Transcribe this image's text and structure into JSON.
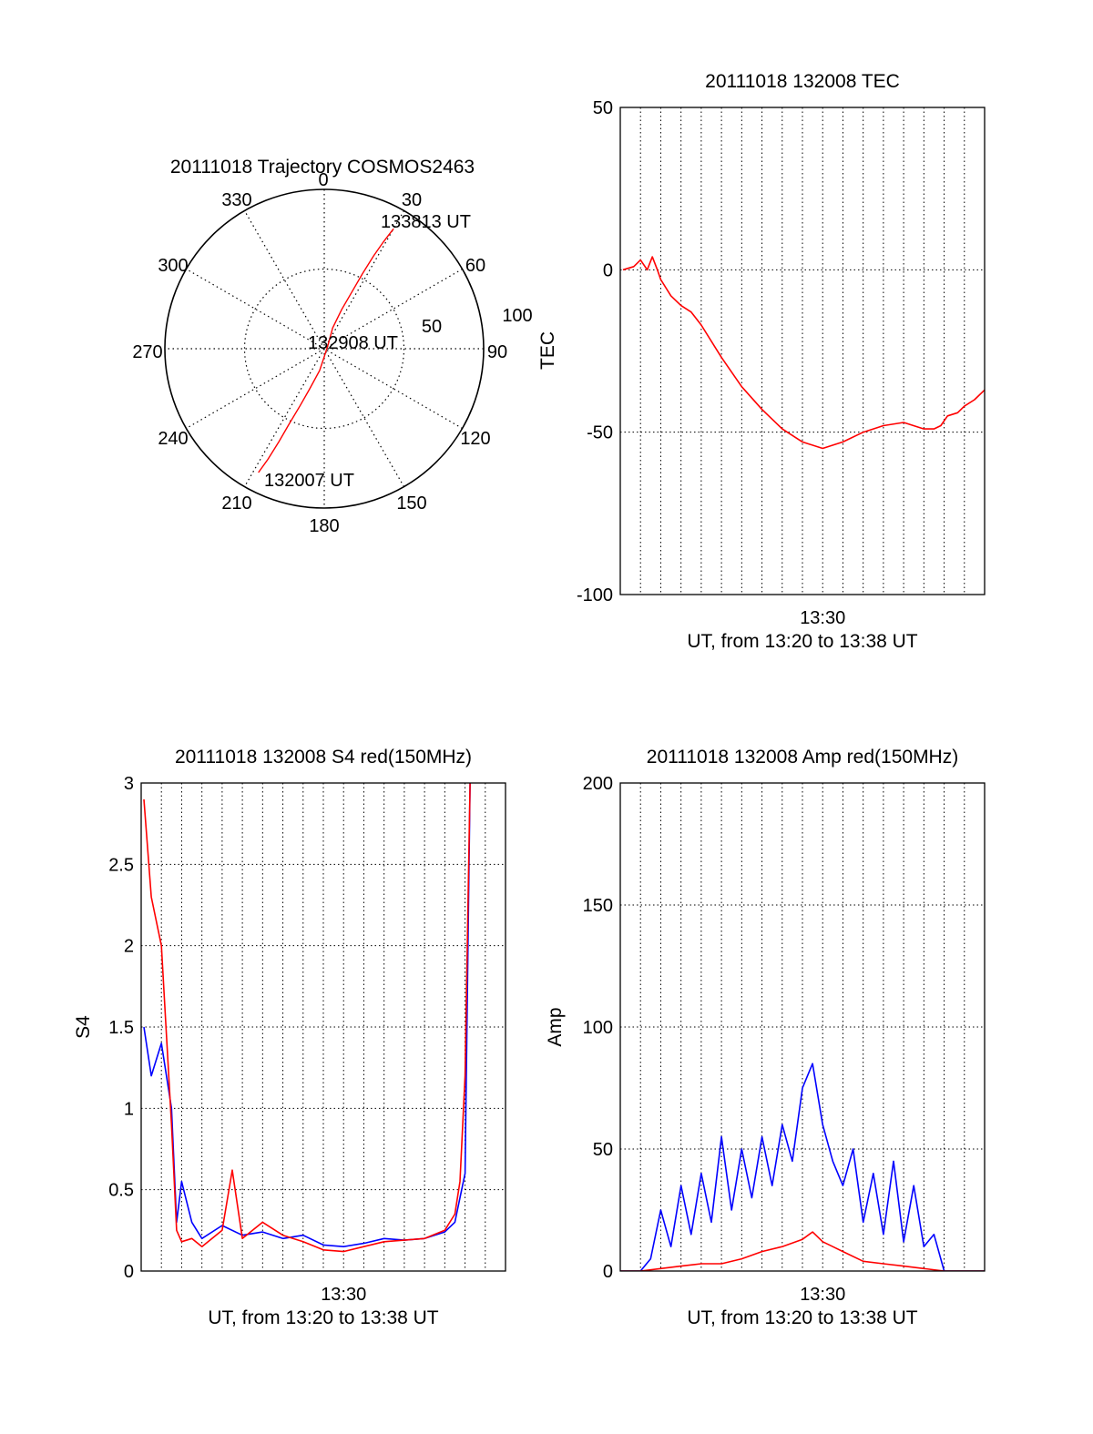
{
  "chart_data": [
    {
      "type": "polar",
      "title": "20111018 Trajectory COSMOS2463",
      "angle_labels": [
        "0",
        "30",
        "60",
        "90",
        "120",
        "150",
        "180",
        "210",
        "240",
        "270",
        "300",
        "330"
      ],
      "angle_values": [
        0,
        30,
        60,
        90,
        120,
        150,
        180,
        210,
        240,
        270,
        300,
        330
      ],
      "radius_labels": [
        "50",
        "100"
      ],
      "radius_values": [
        50,
        100
      ],
      "rlim": [
        0,
        100
      ],
      "grid": true,
      "trajectory": {
        "color": "#ff0000",
        "points": [
          {
            "az": 208,
            "r": 88
          },
          {
            "az": 207,
            "r": 78
          },
          {
            "az": 206,
            "r": 65
          },
          {
            "az": 205,
            "r": 52
          },
          {
            "az": 203,
            "r": 39
          },
          {
            "az": 200,
            "r": 27
          },
          {
            "az": 192,
            "r": 14
          },
          {
            "az": 180,
            "r": 5
          },
          {
            "az": 40,
            "r": 4
          },
          {
            "az": 22,
            "r": 14
          },
          {
            "az": 24,
            "r": 27
          },
          {
            "az": 26,
            "r": 40
          },
          {
            "az": 27,
            "r": 53
          },
          {
            "az": 28,
            "r": 66
          },
          {
            "az": 29,
            "r": 77
          },
          {
            "az": 30,
            "r": 87
          }
        ]
      },
      "annotations": [
        "133813 UT",
        "132908 UT",
        "132007 UT"
      ]
    },
    {
      "type": "line",
      "title": "20111018 132008 TEC",
      "xlabel": "UT, from 13:20 to 13:38 UT",
      "ylabel": "TEC",
      "xtick_labels": [
        "13:30"
      ],
      "ytick_labels": [
        "-100",
        "-50",
        "0",
        "50"
      ],
      "ytick_values": [
        -100,
        -50,
        0,
        50
      ],
      "ylim": [
        -100,
        50
      ],
      "grid": true,
      "series": [
        {
          "color": "#ff0000",
          "x": [
            "13:20:08",
            "13:20:40",
            "13:21:00",
            "13:21:20",
            "13:21:35",
            "13:21:50",
            "13:22:00",
            "13:22:30",
            "13:23:00",
            "13:23:30",
            "13:24:00",
            "13:25:00",
            "13:26:00",
            "13:27:00",
            "13:28:00",
            "13:29:00",
            "13:30:00",
            "13:31:00",
            "13:32:00",
            "13:33:00",
            "13:34:00",
            "13:35:00",
            "13:35:30",
            "13:35:50",
            "13:36:10",
            "13:36:40",
            "13:37:00",
            "13:37:30",
            "13:38:00"
          ],
          "values": [
            0,
            1,
            3,
            0,
            4,
            0,
            -3,
            -8,
            -11,
            -13,
            -17,
            -27,
            -36,
            -43,
            -49,
            -53,
            -55,
            -53,
            -50,
            -48,
            -47,
            -49,
            -49,
            -48,
            -45,
            -44,
            -42,
            -40,
            -37
          ]
        }
      ]
    },
    {
      "type": "line",
      "title": "20111018 132008 S4 red(150MHz)",
      "xlabel": "UT, from 13:20 to 13:38 UT",
      "ylabel": "S4",
      "xtick_labels": [
        "13:30"
      ],
      "ytick_labels": [
        "0",
        "0.5",
        "1",
        "1.5",
        "2",
        "2.5",
        "3"
      ],
      "ytick_values": [
        0,
        0.5,
        1,
        1.5,
        2,
        2.5,
        3
      ],
      "ylim": [
        0,
        3
      ],
      "grid": true,
      "series": [
        {
          "color": "#0000ff",
          "x": [
            "13:20:08",
            "13:20:30",
            "13:21:00",
            "13:21:30",
            "13:21:45",
            "13:22:00",
            "13:22:30",
            "13:23:00",
            "13:24:00",
            "13:25:00",
            "13:26:00",
            "13:27:00",
            "13:28:00",
            "13:29:00",
            "13:30:00",
            "13:31:00",
            "13:32:00",
            "13:33:00",
            "13:34:00",
            "13:35:00",
            "13:35:30",
            "13:35:45",
            "13:36:00",
            "13:36:15"
          ],
          "values": [
            1.5,
            1.2,
            1.4,
            1.0,
            0.3,
            0.55,
            0.3,
            0.2,
            0.28,
            0.22,
            0.24,
            0.2,
            0.22,
            0.16,
            0.15,
            0.17,
            0.2,
            0.19,
            0.2,
            0.24,
            0.3,
            0.45,
            0.6,
            3.0
          ]
        },
        {
          "color": "#ff0000",
          "x": [
            "13:20:08",
            "13:20:30",
            "13:21:00",
            "13:21:30",
            "13:21:45",
            "13:22:00",
            "13:22:30",
            "13:23:00",
            "13:24:00",
            "13:24:30",
            "13:25:00",
            "13:26:00",
            "13:27:00",
            "13:28:00",
            "13:29:00",
            "13:30:00",
            "13:31:00",
            "13:32:00",
            "13:33:00",
            "13:34:00",
            "13:35:00",
            "13:35:30",
            "13:35:45",
            "13:36:00",
            "13:36:15"
          ],
          "values": [
            2.9,
            2.3,
            2.0,
            0.9,
            0.25,
            0.18,
            0.2,
            0.15,
            0.25,
            0.62,
            0.2,
            0.3,
            0.22,
            0.18,
            0.13,
            0.12,
            0.15,
            0.18,
            0.19,
            0.2,
            0.25,
            0.35,
            0.55,
            1.2,
            3.0
          ]
        }
      ]
    },
    {
      "type": "line",
      "title": "20111018 132008 Amp red(150MHz)",
      "xlabel": "UT, from 13:20 to 13:38 UT",
      "ylabel": "Amp",
      "xtick_labels": [
        "13:30"
      ],
      "ytick_labels": [
        "0",
        "50",
        "100",
        "150",
        "200"
      ],
      "ytick_values": [
        0,
        50,
        100,
        150,
        200
      ],
      "ylim": [
        0,
        200
      ],
      "grid": true,
      "series": [
        {
          "color": "#0000ff",
          "x": [
            "13:20:00",
            "13:21:00",
            "13:21:30",
            "13:22:00",
            "13:22:30",
            "13:23:00",
            "13:23:30",
            "13:24:00",
            "13:24:30",
            "13:25:00",
            "13:25:30",
            "13:26:00",
            "13:26:30",
            "13:27:00",
            "13:27:30",
            "13:28:00",
            "13:28:30",
            "13:29:00",
            "13:29:30",
            "13:30:00",
            "13:30:30",
            "13:31:00",
            "13:31:30",
            "13:32:00",
            "13:32:30",
            "13:33:00",
            "13:33:30",
            "13:34:00",
            "13:34:30",
            "13:35:00",
            "13:35:30",
            "13:36:00",
            "13:37:00",
            "13:38:00"
          ],
          "values": [
            0,
            0,
            5,
            25,
            10,
            35,
            15,
            40,
            20,
            55,
            25,
            50,
            30,
            55,
            35,
            60,
            45,
            75,
            85,
            60,
            45,
            35,
            50,
            20,
            40,
            15,
            45,
            12,
            35,
            10,
            15,
            0,
            0,
            0
          ]
        },
        {
          "color": "#ff0000",
          "x": [
            "13:20:00",
            "13:21:00",
            "13:22:00",
            "13:23:00",
            "13:24:00",
            "13:25:00",
            "13:26:00",
            "13:27:00",
            "13:28:00",
            "13:29:00",
            "13:29:30",
            "13:30:00",
            "13:30:30",
            "13:31:00",
            "13:32:00",
            "13:33:00",
            "13:34:00",
            "13:35:00",
            "13:36:00",
            "13:37:00",
            "13:38:00"
          ],
          "values": [
            0,
            0,
            1,
            2,
            3,
            3,
            5,
            8,
            10,
            13,
            16,
            12,
            10,
            8,
            4,
            3,
            2,
            1,
            0,
            0,
            0
          ]
        }
      ]
    }
  ]
}
